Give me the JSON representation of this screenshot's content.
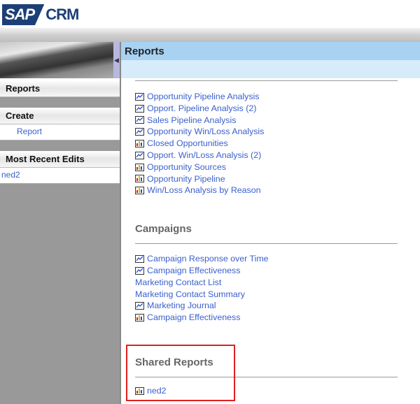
{
  "app": {
    "logo_sap": "SAP",
    "logo_crm": "CRM"
  },
  "header": {
    "title": "Reports"
  },
  "sidebar": {
    "reports_title": "Reports",
    "create_title": "Create",
    "create_items": [
      "Report"
    ],
    "recent_title": "Most Recent Edits",
    "recent_items": [
      "ned2"
    ]
  },
  "sections": [
    {
      "title": "",
      "items": [
        {
          "label": "Opportunity Pipeline Analysis",
          "icon": "line-chart-icon"
        },
        {
          "label": "Opport. Pipeline Analysis (2)",
          "icon": "line-chart-icon"
        },
        {
          "label": "Sales Pipeline Analysis",
          "icon": "line-chart-icon"
        },
        {
          "label": "Opportunity Win/Loss Analysis",
          "icon": "line-chart-icon"
        },
        {
          "label": "Closed Opportunities",
          "icon": "bar-chart-icon"
        },
        {
          "label": "Opport. Win/Loss Analysis (2)",
          "icon": "line-chart-icon"
        },
        {
          "label": "Opportunity Sources",
          "icon": "bar-chart-icon"
        },
        {
          "label": "Opportunity Pipeline",
          "icon": "bar-chart-icon"
        },
        {
          "label": "Win/Loss Analysis by Reason",
          "icon": "bar-chart-icon"
        }
      ]
    },
    {
      "title": "Campaigns",
      "items": [
        {
          "label": "Campaign Response over Time",
          "icon": "line-chart-icon"
        },
        {
          "label": "Campaign Effectiveness",
          "icon": "line-chart-icon"
        },
        {
          "label": "Marketing Contact List",
          "icon": ""
        },
        {
          "label": "Marketing Contact Summary",
          "icon": ""
        },
        {
          "label": "Marketing Journal",
          "icon": "line-chart-icon"
        },
        {
          "label": "Campaign Effectiveness",
          "icon": "bar-chart-icon"
        }
      ]
    },
    {
      "title": "Shared Reports",
      "items": [
        {
          "label": "ned2",
          "icon": "bar-chart-icon"
        }
      ]
    }
  ],
  "colors": {
    "link": "#3a5fcd",
    "brand": "#1d3f77",
    "highlight": "#e02020"
  }
}
